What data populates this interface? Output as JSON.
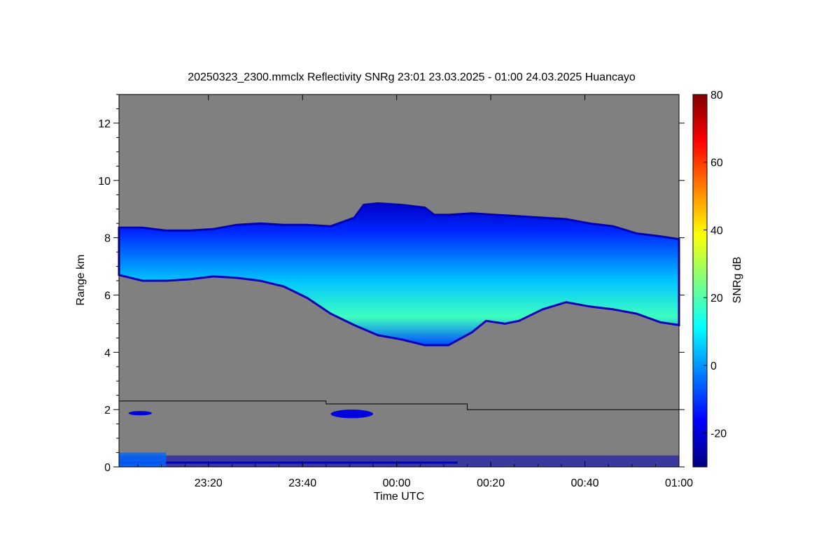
{
  "chart_data": {
    "type": "heatmap",
    "title": "20250323_2300.mmclx Reflectivity SNRg   23:01 23.03.2025 - 01:00 24.03.2025 Huancayo",
    "xlabel": "Time UTC",
    "ylabel": "Range km",
    "colorbar_label": "SNRg dB",
    "x_range": [
      "23:01",
      "01:00"
    ],
    "ylim": [
      0,
      13
    ],
    "clim": [
      -30,
      80
    ],
    "x_ticks": [
      {
        "minute": 19,
        "label": "23:20"
      },
      {
        "minute": 39,
        "label": "23:40"
      },
      {
        "minute": 59,
        "label": "00:00"
      },
      {
        "minute": 79,
        "label": "00:20"
      },
      {
        "minute": 99,
        "label": "00:40"
      },
      {
        "minute": 119,
        "label": "01:00"
      }
    ],
    "y_ticks": [
      {
        "value": 0,
        "label": "0"
      },
      {
        "value": 2,
        "label": "2"
      },
      {
        "value": 4,
        "label": "4"
      },
      {
        "value": 6,
        "label": "6"
      },
      {
        "value": 8,
        "label": "8"
      },
      {
        "value": 10,
        "label": "10"
      },
      {
        "value": 12,
        "label": "12"
      }
    ],
    "colorbar_ticks": [
      {
        "value": -20,
        "label": "-20"
      },
      {
        "value": 0,
        "label": "0"
      },
      {
        "value": 20,
        "label": "20"
      },
      {
        "value": 40,
        "label": "40"
      },
      {
        "value": 60,
        "label": "60"
      },
      {
        "value": 80,
        "label": "80"
      }
    ],
    "background_color": "#808080",
    "cloud_layer": {
      "top_km": [
        [
          0,
          8.35
        ],
        [
          5,
          8.35
        ],
        [
          10,
          8.25
        ],
        [
          15,
          8.25
        ],
        [
          20,
          8.3
        ],
        [
          25,
          8.45
        ],
        [
          30,
          8.5
        ],
        [
          35,
          8.45
        ],
        [
          40,
          8.45
        ],
        [
          45,
          8.4
        ],
        [
          50,
          8.7
        ],
        [
          52,
          9.15
        ],
        [
          55,
          9.2
        ],
        [
          60,
          9.15
        ],
        [
          65,
          9.05
        ],
        [
          67,
          8.8
        ],
        [
          70,
          8.8
        ],
        [
          75,
          8.85
        ],
        [
          80,
          8.8
        ],
        [
          85,
          8.75
        ],
        [
          90,
          8.7
        ],
        [
          95,
          8.65
        ],
        [
          100,
          8.5
        ],
        [
          105,
          8.4
        ],
        [
          110,
          8.15
        ],
        [
          115,
          8.05
        ],
        [
          119,
          7.95
        ]
      ],
      "base_km": [
        [
          0,
          6.7
        ],
        [
          5,
          6.5
        ],
        [
          10,
          6.5
        ],
        [
          15,
          6.55
        ],
        [
          20,
          6.65
        ],
        [
          25,
          6.6
        ],
        [
          30,
          6.5
        ],
        [
          35,
          6.3
        ],
        [
          40,
          5.9
        ],
        [
          45,
          5.35
        ],
        [
          50,
          4.95
        ],
        [
          55,
          4.6
        ],
        [
          60,
          4.45
        ],
        [
          65,
          4.25
        ],
        [
          70,
          4.25
        ],
        [
          75,
          4.7
        ],
        [
          78,
          5.1
        ],
        [
          82,
          5.0
        ],
        [
          85,
          5.1
        ],
        [
          90,
          5.5
        ],
        [
          95,
          5.75
        ],
        [
          100,
          5.6
        ],
        [
          105,
          5.5
        ],
        [
          110,
          5.35
        ],
        [
          115,
          5.05
        ],
        [
          119,
          4.95
        ]
      ],
      "snr_peak_db": 18
    },
    "second_layer": {
      "segments": [
        {
          "minute_start": 2,
          "minute_end": 7,
          "range_km": [
            1.8,
            1.95
          ]
        },
        {
          "minute_start": 45,
          "minute_end": 54,
          "range_km": [
            1.7,
            2.0
          ]
        }
      ]
    },
    "boundary_line_km": [
      [
        0,
        2.3
      ],
      [
        44,
        2.3
      ],
      [
        44,
        2.2
      ],
      [
        74,
        2.2
      ],
      [
        74,
        2.0
      ],
      [
        119,
        2.0
      ]
    ],
    "surface_band_km": [
      0,
      0.4
    ],
    "colorscale": [
      "#00007f",
      "#0000ff",
      "#007fff",
      "#00ffff",
      "#7fff7f",
      "#ffff00",
      "#ff7f00",
      "#ff0000",
      "#7f0000"
    ]
  }
}
